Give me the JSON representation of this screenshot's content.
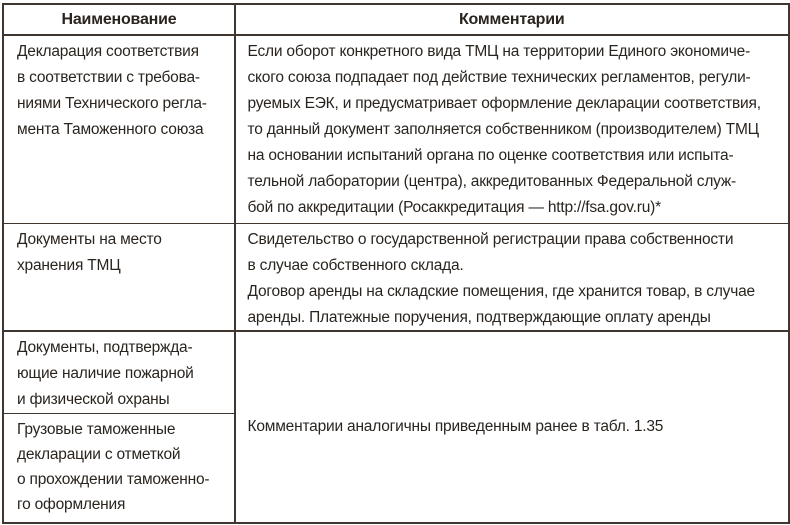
{
  "header": {
    "name_col": "Наименование",
    "comments_col": "Комментарии"
  },
  "rows": [
    {
      "name": "Декларация соответствия\nв соответствии с требова-\nниями Технического регла-\nмента Таможенного союза",
      "comment": "Если оборот конкретного вида ТМЦ на территории Единого экономиче-\nского союза подпадает под действие технических регламентов, регули-\nруемых ЕЭК, и предусматривает оформление декларации соответствия,\nто данный документ заполняется собственником (производителем) ТМЦ\nна основании испытаний органа по оценке соответствия или испыта-\nтельной лаборатории (центра), аккредитованных Федеральной служ-\nбой по аккредитации (Росаккредитация — http://fsa.gov.ru)*"
    },
    {
      "name": "Документы на место\nхранения ТМЦ",
      "comment": "Свидетельство о государственной регистрации права собственности\nв случае собственного склада.\nДоговор аренды на складские помещения, где хранится товар, в случае\nаренды. Платежные поручения, подтверждающие оплату аренды"
    },
    {
      "name": "Документы, подтвержда-\nющие наличие пожарной\nи физической охраны"
    },
    {
      "name": "Грузовые таможенные\nдекларации с отметкой\nо прохождении таможенно-\nго оформления"
    }
  ],
  "merged_comment": "Комментарии аналогичны приведенным ранее в табл. 1.35",
  "colors": {
    "border": "#3e362f",
    "text": "#2a241f",
    "background": "#ffffff"
  }
}
